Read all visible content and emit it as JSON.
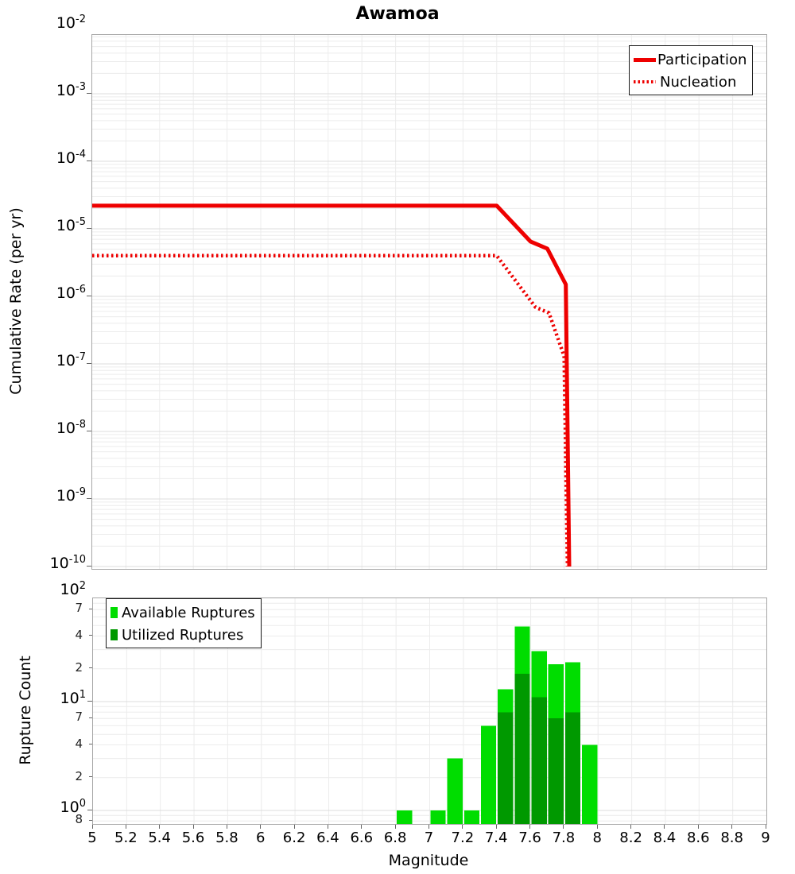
{
  "colors": {
    "line": "#ee0000",
    "available": "#00dd00",
    "utilized": "#009900",
    "grid_minor": "#ececec",
    "grid_major": "#dcdcdc",
    "frame": "#a6a6a6"
  },
  "chart_data": [
    {
      "type": "line",
      "title": "Awamoa",
      "xlabel": "Magnitude",
      "ylabel": "Cumulative Rate (per yr)",
      "xlim": [
        5,
        9
      ],
      "ylim": [
        1e-10,
        0.01
      ],
      "x_scale": "linear",
      "y_scale": "log",
      "grid": true,
      "legend_position": "top-right",
      "series": [
        {
          "name": "Participation",
          "style": "solid",
          "color": "#ee0000",
          "points": [
            [
              5.0,
              2.2e-05
            ],
            [
              7.4,
              2.2e-05
            ],
            [
              7.6,
              6.5e-06
            ],
            [
              7.7,
              5.1e-06
            ],
            [
              7.81,
              1.5e-06
            ],
            [
              7.83,
              1e-10
            ]
          ]
        },
        {
          "name": "Nucleation",
          "style": "dotted",
          "color": "#ee0000",
          "points": [
            [
              5.0,
              4e-06
            ],
            [
              7.4,
              4e-06
            ],
            [
              7.63,
              6.9e-07
            ],
            [
              7.71,
              5.7e-07
            ],
            [
              7.8,
              1.3e-07
            ],
            [
              7.82,
              1e-10
            ]
          ]
        }
      ],
      "y_ticks": {
        "major_exponents": [
          -2,
          -3,
          -4,
          -5,
          -6,
          -7,
          -8,
          -9,
          -10
        ]
      }
    },
    {
      "type": "bar",
      "xlabel": "Magnitude",
      "ylabel": "Rupture Count",
      "xlim": [
        5,
        9
      ],
      "ylim": [
        0.75,
        100
      ],
      "y_scale": "log",
      "bin_width": 0.1,
      "grid": true,
      "legend_position": "top-left",
      "series": [
        {
          "name": "Available Ruptures",
          "color": "#00dd00"
        },
        {
          "name": "Utilized Ruptures",
          "color": "#009900"
        }
      ],
      "bars": [
        {
          "magnitude": 6.85,
          "available": 1,
          "utilized": 0
        },
        {
          "magnitude": 7.05,
          "available": 1,
          "utilized": 0
        },
        {
          "magnitude": 7.15,
          "available": 3,
          "utilized": 0
        },
        {
          "magnitude": 7.25,
          "available": 1,
          "utilized": 0
        },
        {
          "magnitude": 7.35,
          "available": 6,
          "utilized": 0
        },
        {
          "magnitude": 7.45,
          "available": 13,
          "utilized": 8
        },
        {
          "magnitude": 7.55,
          "available": 49,
          "utilized": 18
        },
        {
          "magnitude": 7.65,
          "available": 29,
          "utilized": 11
        },
        {
          "magnitude": 7.75,
          "available": 22,
          "utilized": 7
        },
        {
          "magnitude": 7.85,
          "available": 23,
          "utilized": 8
        },
        {
          "magnitude": 7.95,
          "available": 4,
          "utilized": 0
        }
      ],
      "y_ticks": {
        "major_exponents": [
          2,
          1,
          0
        ],
        "minor_labels": [
          {
            "label": "7",
            "value": 70
          },
          {
            "label": "4",
            "value": 40
          },
          {
            "label": "2",
            "value": 20
          },
          {
            "label": "7",
            "value": 7
          },
          {
            "label": "4",
            "value": 4
          },
          {
            "label": "2",
            "value": 2
          },
          {
            "label": "8",
            "value": 0.8
          }
        ]
      },
      "x_ticks": {
        "labels": [
          "5",
          "5.2",
          "5.4",
          "5.6",
          "5.8",
          "6",
          "6.2",
          "6.4",
          "6.6",
          "6.8",
          "7",
          "7.2",
          "7.4",
          "7.6",
          "7.8",
          "8",
          "8.2",
          "8.4",
          "8.6",
          "8.8",
          "9"
        ],
        "values": [
          5,
          5.2,
          5.4,
          5.6,
          5.8,
          6,
          6.2,
          6.4,
          6.6,
          6.8,
          7,
          7.2,
          7.4,
          7.6,
          7.8,
          8,
          8.2,
          8.4,
          8.6,
          8.8,
          9
        ]
      }
    }
  ]
}
